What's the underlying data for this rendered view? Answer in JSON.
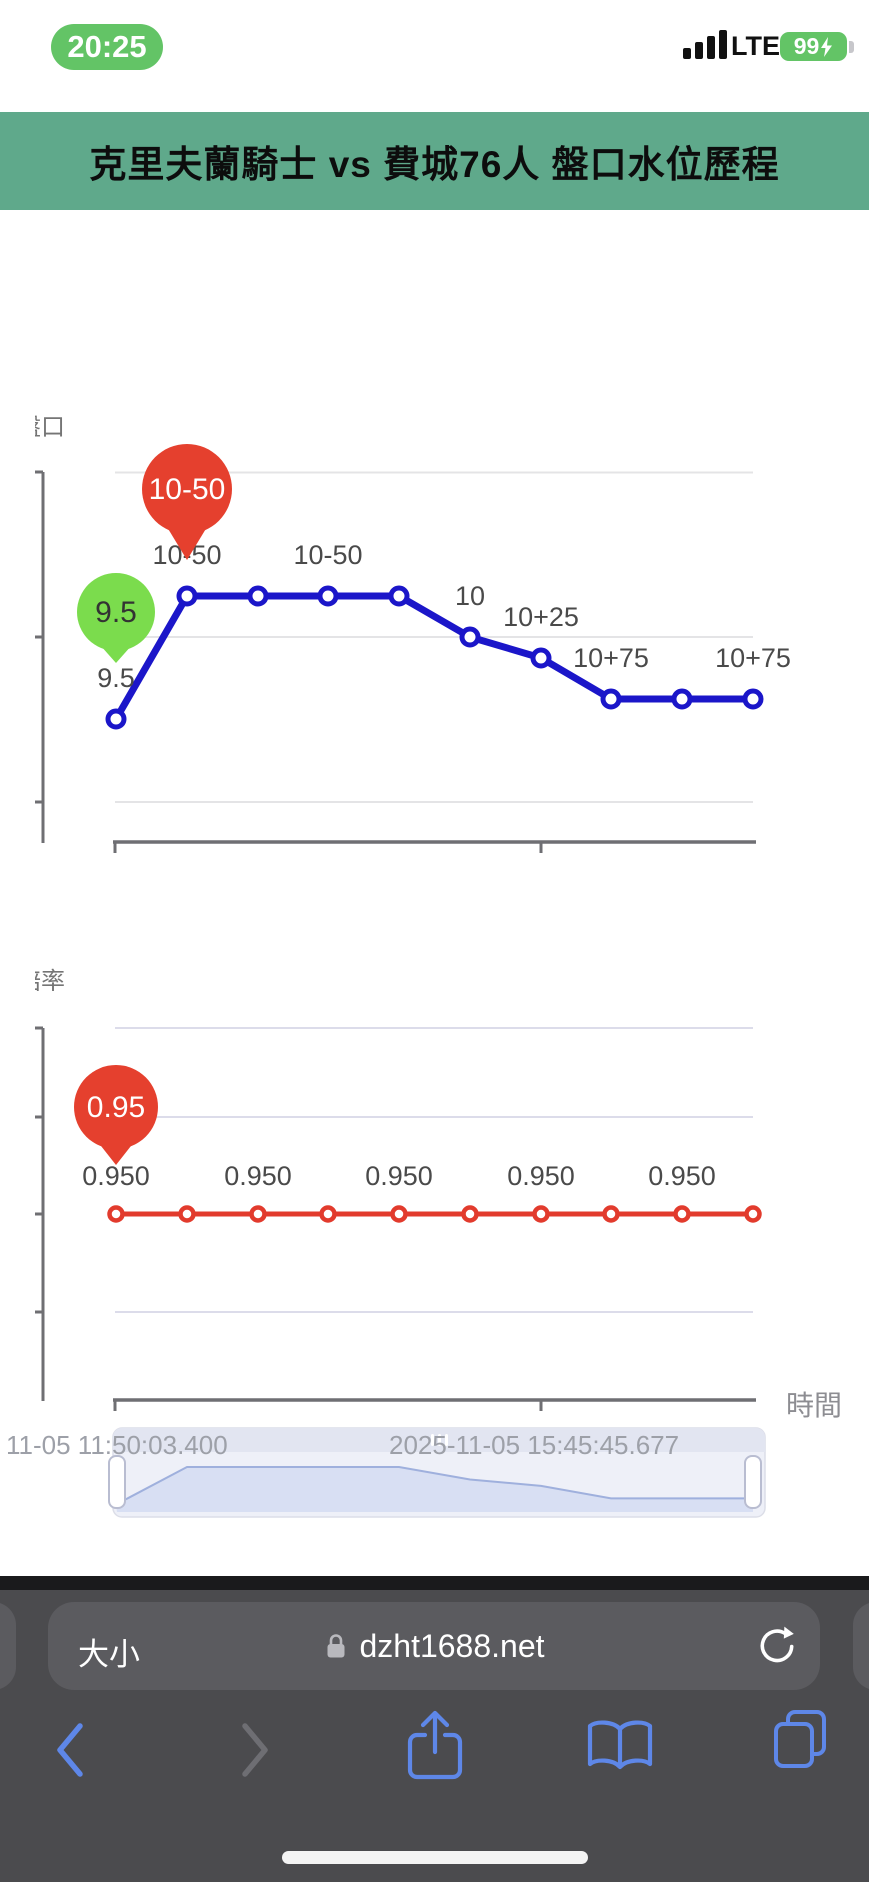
{
  "status_bar": {
    "time": "20:25",
    "carrier": "LTE",
    "battery_percent": "99"
  },
  "header": {
    "title": "克里夫蘭騎士 vs 費城76人 盤口水位歷程",
    "bg_color": "#5fa98b"
  },
  "page": {
    "top_axis_label": "盤口",
    "bottom_axis_label": "賠率",
    "time_axis_label": "時間",
    "x_tick_labels": [
      "11-05 11:50:03.400",
      "2025-11-05 15:45:45.677"
    ]
  },
  "chart_data": [
    {
      "type": "line",
      "title": "盤口",
      "x": [
        1,
        2,
        3,
        4,
        5,
        6,
        7,
        8,
        9,
        10
      ],
      "series": [
        {
          "name": "盤口",
          "values_label": [
            "9.5",
            "10-50",
            "10-50",
            "10-50",
            "10-50",
            "10",
            "10+25",
            "10+75",
            "10+75",
            "10+75"
          ],
          "values_numeric": [
            9.5,
            10.5,
            10.5,
            10.5,
            10.5,
            10,
            9.75,
            9.25,
            9.25,
            9.25
          ],
          "color": "#1b16c9"
        }
      ],
      "point_labels": [
        {
          "index": 0,
          "text": "9.5"
        },
        {
          "index": 1,
          "text": "10-50"
        },
        {
          "index": 3,
          "text": "10-50"
        },
        {
          "index": 5,
          "text": "10"
        },
        {
          "index": 6,
          "text": "10+25"
        },
        {
          "index": 7,
          "text": "10+75"
        },
        {
          "index": 9,
          "text": "10+75"
        }
      ],
      "markers": [
        {
          "index": 0,
          "text": "9.5",
          "fill": "#7bdc4d",
          "text_color": "#333333"
        },
        {
          "index": 1,
          "text": "10-50",
          "fill": "#e5402e",
          "text_color": "#ffffff"
        }
      ],
      "xlabel": "時間",
      "grid": true,
      "legend": "none"
    },
    {
      "type": "line",
      "title": "賠率",
      "x": [
        1,
        2,
        3,
        4,
        5,
        6,
        7,
        8,
        9,
        10
      ],
      "series": [
        {
          "name": "賠率",
          "values_label": [
            "0.950",
            "0.950",
            "0.950",
            "0.950",
            "0.950",
            "0.950",
            "0.950",
            "0.950",
            "0.950",
            "0.950"
          ],
          "values_numeric": [
            0.95,
            0.95,
            0.95,
            0.95,
            0.95,
            0.95,
            0.95,
            0.95,
            0.95,
            0.95
          ],
          "color": "#e23b2d"
        }
      ],
      "point_labels": [
        {
          "index": 0,
          "text": "0.950"
        },
        {
          "index": 2,
          "text": "0.950"
        },
        {
          "index": 4,
          "text": "0.950"
        },
        {
          "index": 6,
          "text": "0.950"
        },
        {
          "index": 8,
          "text": "0.950"
        }
      ],
      "markers": [
        {
          "index": 0,
          "text": "0.95",
          "fill": "#e5402e",
          "text_color": "#ffffff"
        }
      ],
      "x_axis_time_range": [
        "11-05 11:50:03.400",
        "2025-11-05 15:45:45.677"
      ],
      "xlabel": "時間",
      "grid": true,
      "legend": "none"
    }
  ],
  "browser": {
    "font_size_button": "大小",
    "url": "dzht1688.net",
    "icons": [
      "back",
      "forward",
      "share",
      "bookmarks",
      "tabs",
      "reload",
      "lock"
    ]
  },
  "colors": {
    "header_green": "#5fa98b",
    "status_green": "#63c466",
    "line_blue": "#1b16c9",
    "line_red": "#e23b2d",
    "balloon_red": "#e5402e",
    "balloon_green": "#7bdc4d",
    "ios_blue": "#5e87e8",
    "chrome_gray": "#4b4b4e"
  }
}
